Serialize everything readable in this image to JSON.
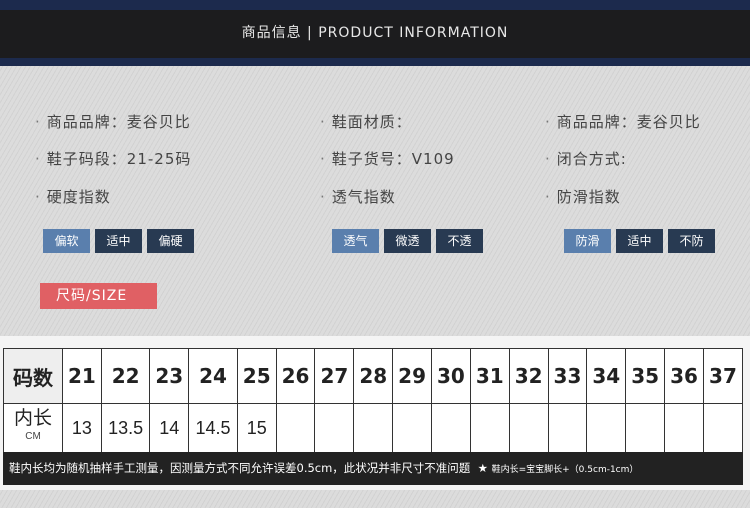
{
  "header": {
    "title": "商品信息 | PRODUCT INFORMATION"
  },
  "info": [
    {
      "label": "商品品牌：麦谷贝比"
    },
    {
      "label": "鞋面材质："
    },
    {
      "label": "商品品牌：麦谷贝比"
    },
    {
      "label": "鞋子码段：21-25码"
    },
    {
      "label": "鞋子货号：V109"
    },
    {
      "label": "闭合方式:"
    },
    {
      "label": "硬度指数"
    },
    {
      "label": "透气指数"
    },
    {
      "label": "防滑指数"
    }
  ],
  "tag_groups": [
    {
      "tags": [
        {
          "label": "偏软",
          "selected": true
        },
        {
          "label": "适中",
          "selected": false
        },
        {
          "label": "偏硬",
          "selected": false
        }
      ]
    },
    {
      "tags": [
        {
          "label": "透气",
          "selected": true
        },
        {
          "label": "微透",
          "selected": false
        },
        {
          "label": "不透",
          "selected": false
        }
      ]
    },
    {
      "tags": [
        {
          "label": "防滑",
          "selected": true
        },
        {
          "label": "适中",
          "selected": false
        },
        {
          "label": "不防",
          "selected": false
        }
      ]
    }
  ],
  "size_button": "尺码/SIZE",
  "size_table": {
    "row1_label": "码数",
    "row2_label": "内长",
    "row2_unit": "CM",
    "sizes": [
      "21",
      "22",
      "23",
      "24",
      "25",
      "26",
      "27",
      "28",
      "29",
      "30",
      "31",
      "32",
      "33",
      "34",
      "35",
      "36",
      "37"
    ],
    "lengths": [
      "13",
      "13.5",
      "14",
      "14.5",
      "15",
      "",
      "",
      "",
      "",
      "",
      "",
      "",
      "",
      "",
      "",
      "",
      ""
    ]
  },
  "footer": {
    "note": "鞋内长均为随机抽样手工测量，因测量方式不同允许误差0.5cm，此状况并非尺寸不准问题",
    "star": "★",
    "formula": "鞋内长=宝宝脚长+（0.5cm-1cm）"
  },
  "colors": {
    "selected_tag": "#5a7fad",
    "tag": "#283a52",
    "size_button": "#e06064",
    "header": "#1c1c1e",
    "navy": "#1c2a4d"
  }
}
